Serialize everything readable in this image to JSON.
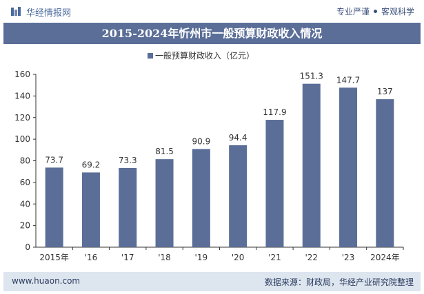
{
  "header": {
    "brand": "华经情报网",
    "tag_left": "专业严谨",
    "tag_right": "客观科学"
  },
  "chart_data": {
    "type": "bar",
    "title": "2015-2024年忻州市一般预算财政收入情况",
    "legend": "一般预算财政收入（亿元）",
    "legend_position": "top",
    "categories": [
      "2015年",
      "'16",
      "'17",
      "'18",
      "'19",
      "'20",
      "'21",
      "'22",
      "'23",
      "2024年"
    ],
    "series": [
      {
        "name": "一般预算财政收入（亿元）",
        "values": [
          73.7,
          69.2,
          73.3,
          81.5,
          90.9,
          94.4,
          117.9,
          151.3,
          147.7,
          137
        ]
      }
    ],
    "value_labels": [
      "73.7",
      "69.2",
      "73.3",
      "81.5",
      "90.9",
      "94.4",
      "117.9",
      "151.3",
      "147.7",
      "137"
    ],
    "ylim": [
      0,
      160
    ],
    "yticks": [
      "0",
      "20",
      "40",
      "60",
      "80",
      "100",
      "120",
      "140",
      "160"
    ],
    "grid": false,
    "colors": {
      "bar": "#5a6e98",
      "axis": "#333333"
    }
  },
  "footer": {
    "url": "www.huaon.com",
    "source": "数据来源：财政局，华经产业研究院整理"
  }
}
